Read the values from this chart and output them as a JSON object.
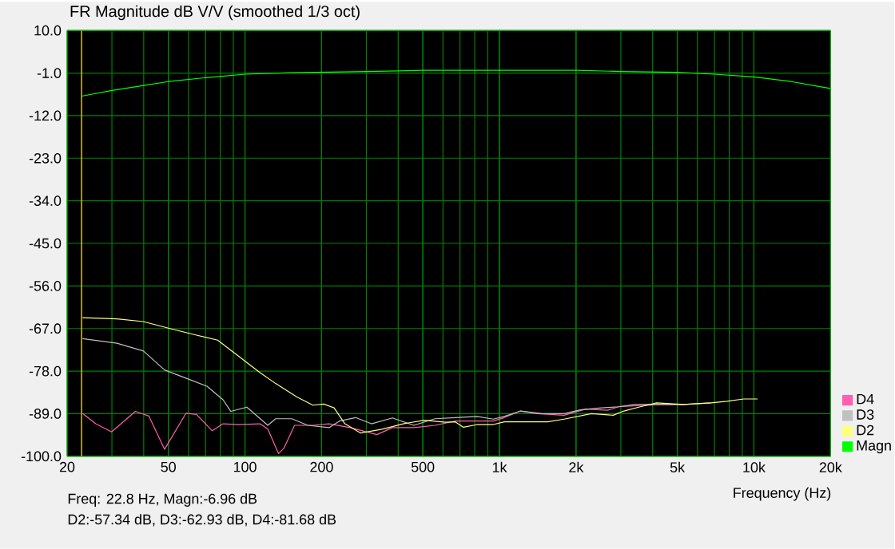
{
  "chart_data": {
    "type": "line",
    "title": "FR Magnitude dB V/V (smoothed 1/3 oct)",
    "xlabel": "Frequency (Hz)",
    "log": "x",
    "xlim": [
      20,
      20000
    ],
    "ylim": [
      -100,
      10
    ],
    "xticks": [
      20,
      50,
      100,
      200,
      500,
      {
        "value": 1000,
        "label": "1k"
      },
      {
        "value": 2000,
        "label": "2k"
      },
      {
        "value": 5000,
        "label": "5k"
      },
      {
        "value": 10000,
        "label": "10k"
      },
      {
        "value": 20000,
        "label": "20k"
      }
    ],
    "yticks": [
      {
        "value": 10,
        "label": "10.0"
      },
      {
        "value": -1,
        "label": "-1.0"
      },
      {
        "value": -12,
        "label": "-12.0"
      },
      {
        "value": -23,
        "label": "-23.0"
      },
      {
        "value": -34,
        "label": "-34.0"
      },
      {
        "value": -45,
        "label": "-45.0"
      },
      {
        "value": -56,
        "label": "-56.0"
      },
      {
        "value": -67,
        "label": "-67.0"
      },
      {
        "value": -78,
        "label": "-78.0"
      },
      {
        "value": -89,
        "label": "-89.0"
      },
      {
        "value": -100,
        "label": "-100.0"
      }
    ],
    "grid": true,
    "legend": "bottom right",
    "marker": "none",
    "line_style": "solid",
    "ref_lines": [
      {
        "axis": "x",
        "value": 22.8,
        "color": "#d0b800"
      }
    ],
    "annotations": [
      "Freq: 22.8 Hz, Magn:-6.96 dB",
      "D2:-57.34 dB, D3:-62.93 dB, D4:-81.68 dB"
    ],
    "series": [
      {
        "name": "D4",
        "color": "#ff60b0",
        "x": [
          23.0,
          25.9,
          29.9,
          37.1,
          41.9,
          48.3,
          58.6,
          64.5,
          74.4,
          82,
          94.6,
          114.6,
          123,
          135.5,
          142.3,
          156.6,
          185,
          214,
          259,
          330,
          380,
          461,
          558,
          671,
          946,
          1045,
          1211,
          1403,
          1796,
          2184,
          2660,
          2937,
          3575,
          4354,
          5300
        ],
        "values": [
          -88.9,
          -91.6,
          -93.7,
          -88.4,
          -89.6,
          -98.2,
          -88.9,
          -89.2,
          -93.4,
          -91.6,
          -91.8,
          -91.6,
          -93.0,
          -99.3,
          -97.9,
          -92.0,
          -92.0,
          -91.6,
          -92.6,
          -94.4,
          -92.6,
          -92.6,
          -92.0,
          -90.9,
          -90.9,
          -90.0,
          -88.3,
          -89.0,
          -89.4,
          -87.8,
          -88.1,
          -87.2,
          -86.9,
          -86.6,
          -86.6
        ]
      },
      {
        "name": "D3",
        "color": "#c0c0c0",
        "x": [
          23.0,
          31.4,
          39.9,
          48.3,
          58.6,
          70.9,
          82,
          88,
          101.7,
          123,
          132,
          152.8,
          176.5,
          214,
          235,
          272,
          314,
          380,
          461,
          558,
          671,
          817,
          946,
          1045,
          1211,
          1473,
          1796,
          2080,
          2410,
          2937,
          3404,
          4354,
          5300,
          6780
        ],
        "values": [
          -69.6,
          -70.8,
          -72.8,
          -77.7,
          -79.8,
          -81.9,
          -85.4,
          -88.4,
          -87.3,
          -92.0,
          -90.3,
          -90.3,
          -92.0,
          -92.6,
          -90.9,
          -90.0,
          -91.6,
          -90.1,
          -92.0,
          -90.3,
          -90.0,
          -89.7,
          -90.4,
          -89.7,
          -88.3,
          -89.0,
          -89.0,
          -88.0,
          -87.6,
          -87.2,
          -86.6,
          -86.6,
          -86.6,
          -86.2
        ]
      },
      {
        "name": "D2",
        "color": "#ffff80",
        "x": [
          23.0,
          31.4,
          39.9,
          50.7,
          64.5,
          78.1,
          94.6,
          114.6,
          132,
          160,
          185,
          204,
          224,
          247,
          285,
          346,
          419,
          507,
          614,
          671,
          722,
          820,
          946,
          1045,
          1548,
          1796,
          2297,
          2800,
          3085,
          3575,
          4142,
          5300,
          6780,
          7850,
          9100,
          10340
        ],
        "values": [
          -64.2,
          -64.5,
          -65.2,
          -67.0,
          -68.7,
          -70.0,
          -74.2,
          -78.4,
          -81.2,
          -84.7,
          -86.8,
          -86.5,
          -87.5,
          -91.6,
          -94.0,
          -93.0,
          -91.6,
          -90.7,
          -91.2,
          -91.1,
          -92.5,
          -91.8,
          -91.8,
          -91.1,
          -91.1,
          -90.4,
          -89.0,
          -89.4,
          -88.3,
          -87.2,
          -86.2,
          -86.6,
          -86.2,
          -85.8,
          -85.2,
          -85.2
        ]
      },
      {
        "name": "Magn",
        "color": "#00ff00",
        "x": [
          22.8,
          30,
          40,
          50,
          70,
          100,
          150,
          300,
          500,
          1000,
          2000,
          3000,
          5000,
          7000,
          10000,
          14000,
          20000
        ],
        "values": [
          -6.96,
          -5.5,
          -4.2,
          -3.2,
          -2.2,
          -1.3,
          -0.9,
          -0.6,
          -0.3,
          -0.3,
          -0.3,
          -0.6,
          -0.8,
          -1.3,
          -2.0,
          -3.2,
          -5.0
        ]
      }
    ]
  }
}
